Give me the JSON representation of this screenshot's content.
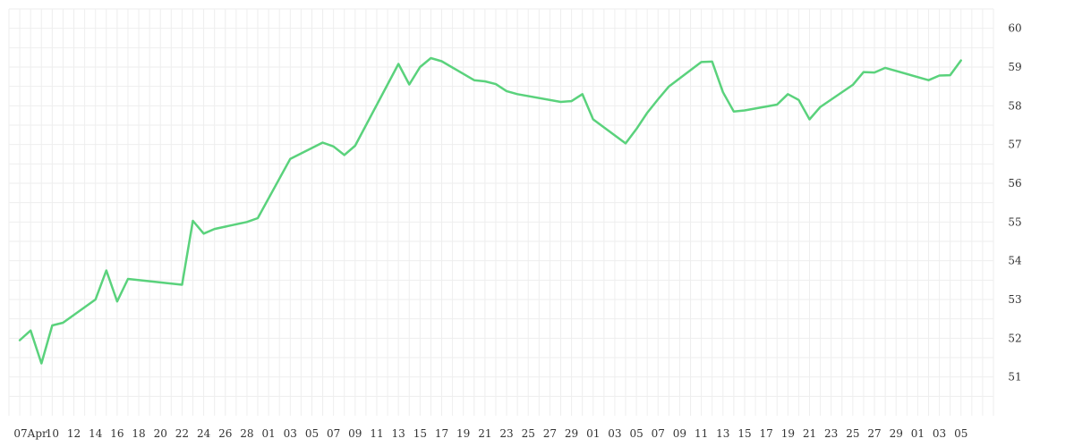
{
  "chart_data": {
    "type": "line",
    "title": "",
    "xlabel": "",
    "ylabel": "",
    "ylim": [
      50,
      60.5
    ],
    "y_axis_position": "right",
    "grid": true,
    "legend": "none",
    "line_color": "#5ad27c",
    "grid_color": "#eeeeee",
    "x_tick_labels": [
      "07Apr",
      "10",
      "12",
      "14",
      "16",
      "18",
      "20",
      "22",
      "24",
      "26",
      "28",
      "01",
      "03",
      "05",
      "07",
      "09",
      "11",
      "13",
      "15",
      "17",
      "19",
      "21",
      "23",
      "25",
      "27",
      "29",
      "01",
      "03",
      "05",
      "07",
      "09",
      "11",
      "13",
      "15",
      "17",
      "19",
      "21",
      "23",
      "25",
      "27",
      "29",
      "01",
      "03",
      "05"
    ],
    "y_tick_labels": [
      "51",
      "52",
      "53",
      "54",
      "55",
      "56",
      "57",
      "58",
      "59",
      "60"
    ],
    "series": [
      {
        "x": [
          "2014-04-07",
          "2014-04-08",
          "2014-04-09",
          "2014-04-10",
          "2014-04-11",
          "2014-04-14",
          "2014-04-15",
          "2014-04-16",
          "2014-04-17",
          "2014-04-22",
          "2014-04-23",
          "2014-04-24",
          "2014-04-25",
          "2014-04-28",
          "2014-04-29",
          "2014-05-02",
          "2014-05-05",
          "2014-05-06",
          "2014-05-07",
          "2014-05-08",
          "2014-05-12",
          "2014-05-13",
          "2014-05-14",
          "2014-05-15",
          "2014-05-16",
          "2014-05-19",
          "2014-05-20",
          "2014-05-21",
          "2014-05-22",
          "2014-05-23",
          "2014-05-27",
          "2014-05-28",
          "2014-05-29",
          "2014-05-30",
          "2014-06-02",
          "2014-06-03",
          "2014-06-04",
          "2014-06-05",
          "2014-06-06",
          "2014-06-09",
          "2014-06-10",
          "2014-06-11",
          "2014-06-12",
          "2014-06-13",
          "2014-06-16",
          "2014-06-17",
          "2014-06-18",
          "2014-06-19",
          "2014-06-20",
          "2014-06-23",
          "2014-06-24",
          "2014-06-25",
          "2014-06-26",
          "2014-06-27",
          "2014-06-30",
          "2014-07-01",
          "2014-07-02",
          "2014-07-03"
        ],
        "values": [
          51.95,
          52.2,
          51.35,
          52.33,
          52.4,
          53.0,
          53.75,
          52.95,
          53.53,
          53.38,
          55.03,
          54.7,
          54.82,
          55.0,
          55.1,
          56.63,
          57.05,
          56.95,
          56.73,
          56.97,
          59.08,
          58.55,
          59.0,
          59.23,
          59.15,
          58.66,
          58.63,
          58.56,
          58.38,
          58.3,
          58.1,
          58.12,
          58.3,
          57.65,
          57.03,
          57.4,
          57.82,
          58.17,
          58.5,
          59.13,
          59.14,
          58.35,
          57.85,
          57.88,
          58.03,
          58.3,
          58.15,
          57.65,
          57.97,
          58.54,
          58.87,
          58.86,
          58.98,
          58.9,
          58.66,
          58.78,
          58.79,
          59.17
        ]
      }
    ]
  }
}
